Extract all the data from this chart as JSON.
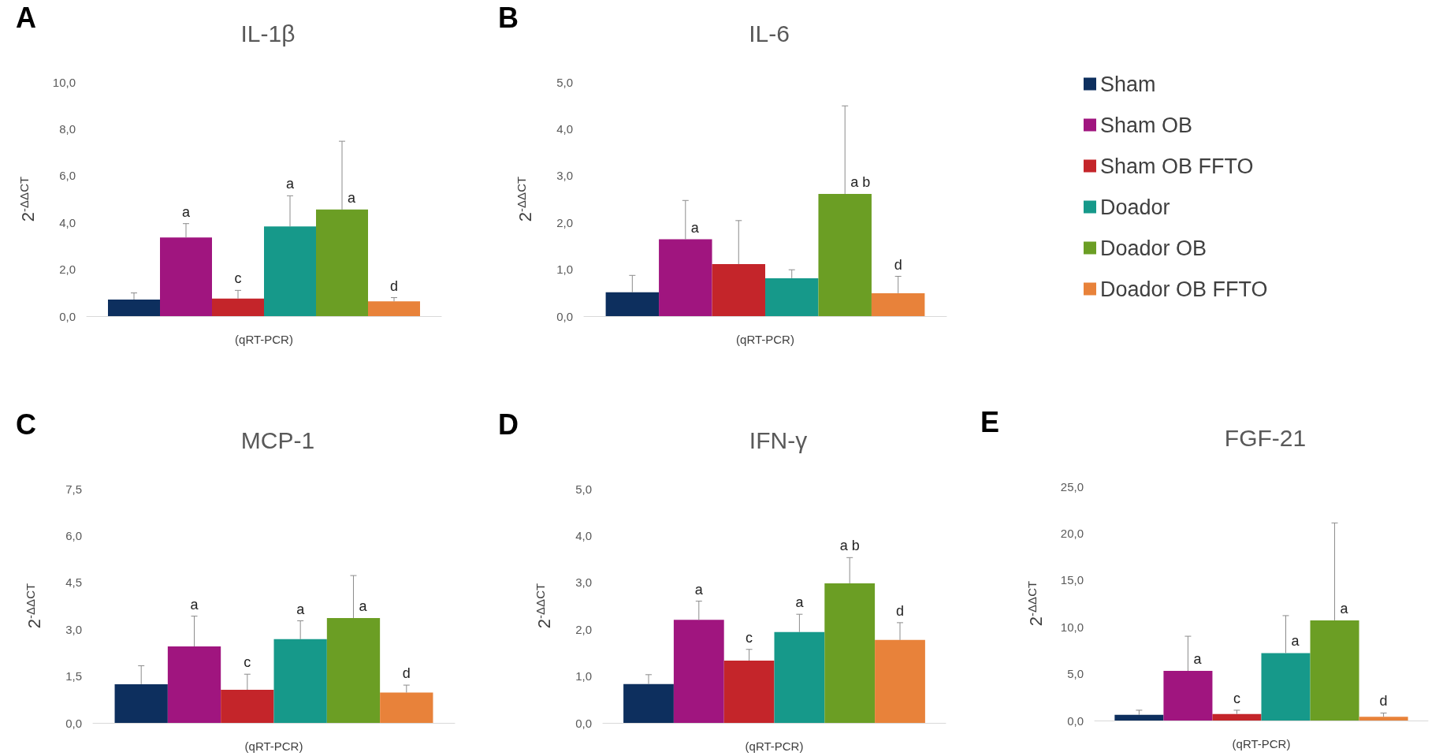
{
  "chart_data": [
    {
      "type": "bar",
      "title": "IL-1β",
      "annotations": [
        "A"
      ],
      "xlabel": "(qRT-PCR)",
      "ylabel": "2$^{-ΔΔCT}$",
      "categories": [
        null
      ],
      "ylim": [
        0,
        10
      ],
      "yticks": [
        {
          "value": 0,
          "label": "0,0"
        },
        {
          "value": 2,
          "label": "2,0"
        },
        {
          "value": 4,
          "label": "4,0"
        },
        {
          "value": 6,
          "label": "6,0"
        },
        {
          "value": 8,
          "label": "8,0"
        },
        {
          "value": 10,
          "label": "10,0"
        }
      ],
      "legend": false,
      "series": [
        {
          "color": "#0d2f5e",
          "values": [
            0.71
          ],
          "errors": [
            [
              0.71,
              0.99
            ]
          ],
          "value_labels": [
            null
          ]
        },
        {
          "color": "#a0157f",
          "values": [
            3.36
          ],
          "errors": [
            [
              3.36,
              3.95
            ]
          ],
          "value_labels": [
            "a"
          ]
        },
        {
          "color": "#c4252a",
          "values": [
            0.75
          ],
          "errors": [
            [
              0.75,
              1.1
            ]
          ],
          "value_labels": [
            "c"
          ]
        },
        {
          "color": "#16998a",
          "values": [
            3.83
          ],
          "errors": [
            [
              3.83,
              5.14
            ]
          ],
          "value_labels": [
            "a"
          ]
        },
        {
          "color": "#6b9e24",
          "values": [
            4.55
          ],
          "errors": [
            [
              4.55,
              7.47
            ]
          ],
          "value_labels": [
            "a"
          ]
        },
        {
          "color": "#e8823a",
          "values": [
            0.63
          ],
          "errors": [
            [
              0.63,
              0.79
            ]
          ],
          "value_labels": [
            "d"
          ]
        }
      ]
    },
    {
      "type": "bar",
      "title": "IL-6",
      "annotations": [
        "B"
      ],
      "xlabel": "(qRT-PCR)",
      "ylabel": "2$^{-ΔΔCT}$",
      "categories": [
        null
      ],
      "ylim": [
        0,
        5
      ],
      "yticks": [
        {
          "value": 0,
          "label": "0,0"
        },
        {
          "value": 1,
          "label": "1,0"
        },
        {
          "value": 2,
          "label": "2,0"
        },
        {
          "value": 3,
          "label": "3,0"
        },
        {
          "value": 4,
          "label": "4,0"
        },
        {
          "value": 5,
          "label": "5,0"
        }
      ],
      "legend": "right",
      "series": [
        {
          "name": "Sham",
          "color": "#0d2f5e",
          "values": [
            0.51
          ],
          "errors": [
            [
              0.51,
              0.87
            ]
          ],
          "value_labels": [
            null
          ]
        },
        {
          "name": "Sham OB",
          "color": "#a0157f",
          "values": [
            1.64
          ],
          "errors": [
            [
              1.64,
              2.47
            ]
          ],
          "value_labels": [
            "a"
          ]
        },
        {
          "name": "Sham OB FFTO",
          "color": "#c4252a",
          "values": [
            1.11
          ],
          "errors": [
            [
              1.11,
              2.04
            ]
          ],
          "value_labels": [
            null
          ]
        },
        {
          "name": "Doador",
          "color": "#16998a",
          "values": [
            0.81
          ],
          "errors": [
            [
              0.81,
              0.99
            ]
          ],
          "value_labels": [
            null
          ]
        },
        {
          "name": "Doador OB",
          "color": "#6b9e24",
          "values": [
            2.61
          ],
          "errors": [
            [
              2.61,
              4.49
            ]
          ],
          "value_labels": [
            "a b"
          ]
        },
        {
          "name": "Doador OB FFTO",
          "color": "#e8823a",
          "values": [
            0.49
          ],
          "errors": [
            [
              0.49,
              0.85
            ]
          ],
          "value_labels": [
            "d"
          ]
        }
      ]
    },
    {
      "type": "bar",
      "title": "MCP-1",
      "annotations": [
        "C"
      ],
      "xlabel": "(qRT-PCR)",
      "ylabel": "2$^{-ΔΔCT}$",
      "categories": [
        null
      ],
      "ylim": [
        0,
        7.5
      ],
      "yticks": [
        {
          "value": 0,
          "label": "0,0"
        },
        {
          "value": 1.5,
          "label": "1,5"
        },
        {
          "value": 3,
          "label": "3,0"
        },
        {
          "value": 4.5,
          "label": "4,5"
        },
        {
          "value": 6,
          "label": "6,0"
        },
        {
          "value": 7.5,
          "label": "7,5"
        }
      ],
      "legend": false,
      "series": [
        {
          "color": "#0d2f5e",
          "values": [
            1.24
          ],
          "errors": [
            [
              1.24,
              1.83
            ]
          ],
          "value_labels": [
            null
          ]
        },
        {
          "color": "#a0157f",
          "values": [
            2.45
          ],
          "errors": [
            [
              2.45,
              3.42
            ]
          ],
          "value_labels": [
            "a"
          ]
        },
        {
          "color": "#c4252a",
          "values": [
            1.06
          ],
          "errors": [
            [
              1.06,
              1.56
            ]
          ],
          "value_labels": [
            "c"
          ]
        },
        {
          "color": "#16998a",
          "values": [
            2.68
          ],
          "errors": [
            [
              2.68,
              3.27
            ]
          ],
          "value_labels": [
            "a"
          ]
        },
        {
          "color": "#6b9e24",
          "values": [
            3.36
          ],
          "errors": [
            [
              3.36,
              4.72
            ]
          ],
          "value_labels": [
            "a"
          ]
        },
        {
          "color": "#e8823a",
          "values": [
            0.97
          ],
          "errors": [
            [
              0.97,
              1.21
            ]
          ],
          "value_labels": [
            "d"
          ]
        }
      ]
    },
    {
      "type": "bar",
      "title": "IFN-γ",
      "annotations": [
        "D"
      ],
      "xlabel": "(qRT-PCR)",
      "ylabel": "2$^{-ΔΔCT}$",
      "categories": [
        null
      ],
      "ylim": [
        0,
        5
      ],
      "yticks": [
        {
          "value": 0,
          "label": "0,0"
        },
        {
          "value": 1,
          "label": "1,0"
        },
        {
          "value": 2,
          "label": "2,0"
        },
        {
          "value": 3,
          "label": "3,0"
        },
        {
          "value": 4,
          "label": "4,0"
        },
        {
          "value": 5,
          "label": "5,0"
        }
      ],
      "legend": false,
      "series": [
        {
          "color": "#0d2f5e",
          "values": [
            0.83
          ],
          "errors": [
            [
              0.83,
              1.03
            ]
          ],
          "value_labels": [
            null
          ]
        },
        {
          "color": "#a0157f",
          "values": [
            2.2
          ],
          "errors": [
            [
              2.2,
              2.6
            ]
          ],
          "value_labels": [
            "a"
          ]
        },
        {
          "color": "#c4252a",
          "values": [
            1.33
          ],
          "errors": [
            [
              1.33,
              1.57
            ]
          ],
          "value_labels": [
            "c"
          ]
        },
        {
          "color": "#16998a",
          "values": [
            1.94
          ],
          "errors": [
            [
              1.94,
              2.32
            ]
          ],
          "value_labels": [
            "a"
          ]
        },
        {
          "color": "#6b9e24",
          "values": [
            2.98
          ],
          "errors": [
            [
              2.98,
              3.53
            ]
          ],
          "value_labels": [
            "a b"
          ]
        },
        {
          "color": "#e8823a",
          "values": [
            1.77
          ],
          "errors": [
            [
              1.77,
              2.14
            ]
          ],
          "value_labels": [
            "d"
          ]
        }
      ]
    },
    {
      "type": "bar",
      "title": "FGF-21",
      "annotations": [
        "E"
      ],
      "xlabel": "(qRT-PCR)",
      "ylabel": "2$^{-ΔΔCT}$",
      "categories": [
        null
      ],
      "ylim": [
        0,
        25
      ],
      "yticks": [
        {
          "value": 0,
          "label": "0,0"
        },
        {
          "value": 5,
          "label": "5,0"
        },
        {
          "value": 10,
          "label": "10,0"
        },
        {
          "value": 15,
          "label": "15,0"
        },
        {
          "value": 20,
          "label": "20,0"
        },
        {
          "value": 25,
          "label": "25,0"
        }
      ],
      "legend": false,
      "series": [
        {
          "color": "#0d2f5e",
          "values": [
            0.6
          ],
          "errors": [
            [
              0.6,
              1.1
            ]
          ],
          "value_labels": [
            null
          ]
        },
        {
          "color": "#a0157f",
          "values": [
            5.3
          ],
          "errors": [
            [
              5.3,
              9.0
            ]
          ],
          "value_labels": [
            "a"
          ]
        },
        {
          "color": "#c4252a",
          "values": [
            0.7
          ],
          "errors": [
            [
              0.7,
              1.1
            ]
          ],
          "value_labels": [
            "c"
          ]
        },
        {
          "color": "#16998a",
          "values": [
            7.2
          ],
          "errors": [
            [
              7.2,
              11.2
            ]
          ],
          "value_labels": [
            "a"
          ]
        },
        {
          "color": "#6b9e24",
          "values": [
            10.7
          ],
          "errors": [
            [
              10.7,
              21.1
            ]
          ],
          "value_labels": [
            "a"
          ]
        },
        {
          "color": "#e8823a",
          "values": [
            0.4
          ],
          "errors": [
            [
              0.4,
              0.8
            ]
          ],
          "value_labels": [
            "d"
          ]
        }
      ]
    }
  ]
}
